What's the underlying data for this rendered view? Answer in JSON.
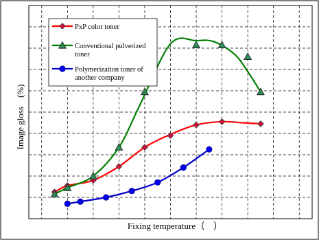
{
  "chart_data": {
    "type": "line",
    "title": "",
    "xlabel": "Fixing temperature（　）",
    "ylabel": "Image gloss　(%)",
    "x": [
      1,
      2,
      3,
      4,
      5,
      6,
      7,
      8,
      9,
      10,
      11
    ],
    "xlim": [
      0.5,
      11.5
    ],
    "ylim": [
      0,
      10.0
    ],
    "grid": true,
    "legend": "top-left",
    "series": [
      {
        "name": "PxP color toner",
        "color": "#ff0000",
        "marker": "diamond",
        "marker_color": "#d0103a",
        "x": [
          1.5,
          2,
          3,
          4,
          5,
          6,
          7,
          8,
          8.8,
          9.5
        ],
        "values": [
          1.25,
          1.55,
          1.8,
          2.45,
          3.35,
          3.95,
          4.4,
          4.55,
          4.5,
          4.45
        ],
        "marker_x": [
          1.5,
          2,
          3,
          4,
          5,
          6,
          7,
          8,
          9.5
        ],
        "marker_values": [
          1.25,
          1.55,
          1.8,
          2.45,
          3.35,
          3.9,
          4.4,
          4.55,
          4.45
        ]
      },
      {
        "name": "Conventional pulverized toner",
        "color": "#008000",
        "marker": "triangle",
        "marker_color": "#2e8b57",
        "x": [
          1.5,
          2,
          3,
          4,
          4.8,
          6,
          7,
          7.7,
          8.5,
          9,
          9.5
        ],
        "values": [
          1.15,
          1.45,
          2.0,
          3.35,
          5.3,
          8.2,
          8.35,
          8.3,
          7.7,
          6.9,
          5.95
        ],
        "marker_x": [
          1.5,
          2,
          3,
          4,
          5,
          7,
          8,
          9,
          9.5
        ],
        "marker_values": [
          1.15,
          1.45,
          2.0,
          3.35,
          5.95,
          8.15,
          8.15,
          7.6,
          5.95
        ],
        "marker_override": [
          [
            5,
            5.95
          ],
          [
            7,
            8.15
          ]
        ]
      },
      {
        "name": "Polymerization toner of another company",
        "color": "#0000cc",
        "marker": "circle",
        "marker_color": "#0000ee",
        "x": [
          2,
          2.5,
          3.5,
          4.5,
          5.5,
          6.5,
          7.5
        ],
        "values": [
          0.7,
          0.8,
          1.0,
          1.3,
          1.7,
          2.4,
          3.25
        ],
        "marker_x": [
          2,
          2.5,
          3.5,
          4.5,
          5.5,
          6.5,
          7.5
        ],
        "marker_values": [
          0.7,
          0.8,
          1.0,
          1.3,
          1.7,
          2.4,
          3.25
        ]
      }
    ]
  }
}
